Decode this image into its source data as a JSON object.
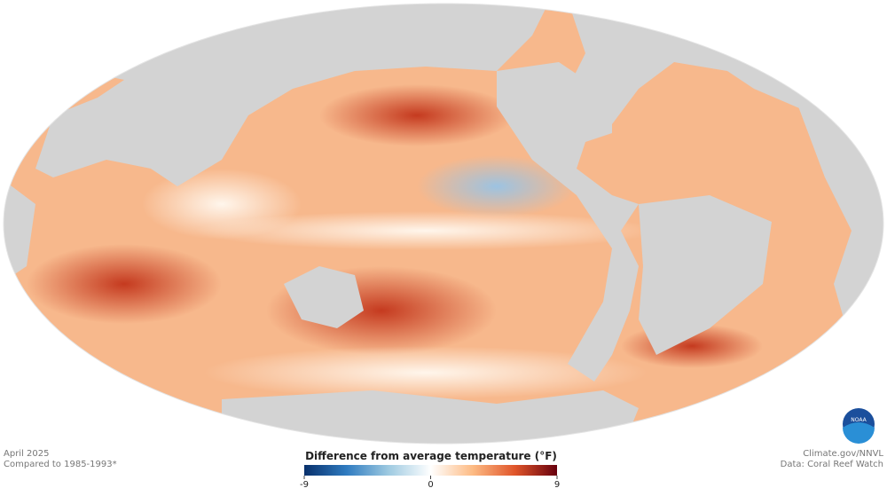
{
  "notes": {
    "date": "April 2025",
    "baseline": "Compared to 1985-1993*",
    "credit": "Climate.gov/NNVL",
    "source": "Data: Coral Reef Watch"
  },
  "legend": {
    "title": "Difference from average temperature (°F)",
    "lim": [
      -9,
      9
    ],
    "ticks": [
      -9,
      0,
      9
    ],
    "colors": [
      "#08306b",
      "#2f7bc0",
      "#9ecae1",
      "#ffffff",
      "#fdbb84",
      "#e0552a",
      "#67000d"
    ]
  }
}
